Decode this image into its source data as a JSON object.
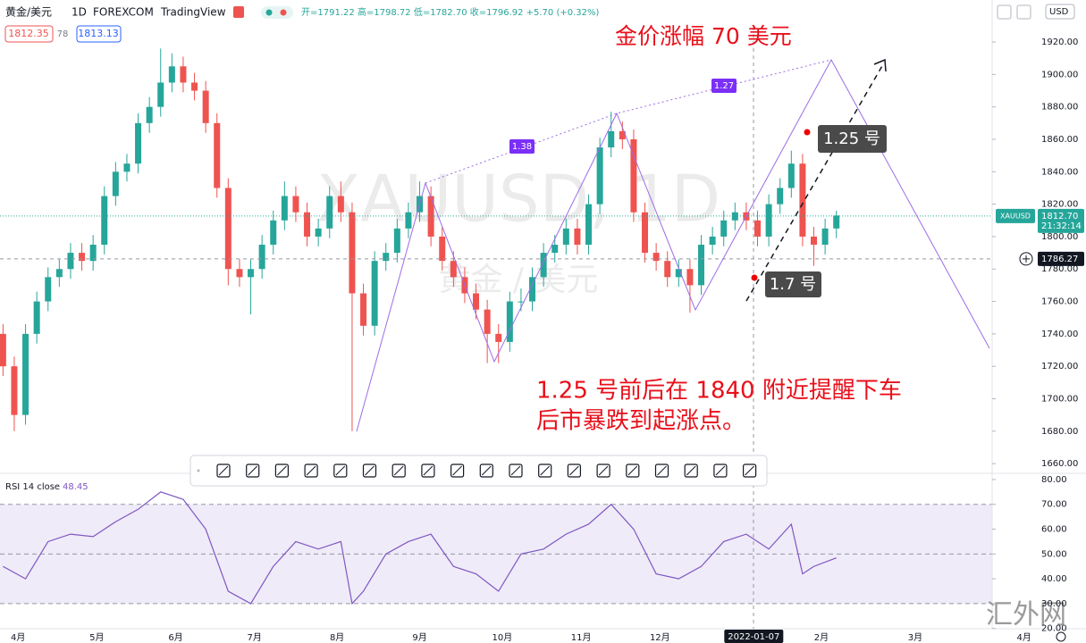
{
  "header": {
    "symbol": "黄金/美元",
    "interval": "1D",
    "exchange": "FOREXCOM",
    "source": "TradingView",
    "ohlc": "开=1791.22 高=1798.72 低=1782.70 收=1796.92 +5.70 (+0.32%)",
    "bid": "1812.35",
    "spread": "78",
    "ask": "1813.13",
    "currency": "USD",
    "site": "汇外网"
  },
  "chart_data": {
    "type": "candlestick",
    "watermark": "XAUUSD, 1D",
    "watermark_sub": "黄金 / 美元",
    "symbol_tag": "XAUUSD",
    "up_color": "#26a69a",
    "down_color": "#ef5350",
    "candles": [
      [
        -4,
        1740,
        1746,
        1714,
        1720
      ],
      [
        -1,
        1720,
        1726,
        1680,
        1690
      ],
      [
        2,
        1690,
        1746,
        1684,
        1740
      ],
      [
        5,
        1740,
        1766,
        1734,
        1760
      ],
      [
        8,
        1760,
        1781,
        1754,
        1775
      ],
      [
        11,
        1775,
        1786,
        1769,
        1780
      ],
      [
        14,
        1780,
        1796,
        1774,
        1790
      ],
      [
        17,
        1790,
        1796,
        1779,
        1785
      ],
      [
        20,
        1785,
        1801,
        1779,
        1795
      ],
      [
        23,
        1795,
        1831,
        1789,
        1825
      ],
      [
        26,
        1825,
        1846,
        1819,
        1840
      ],
      [
        29,
        1840,
        1851,
        1834,
        1845
      ],
      [
        32,
        1845,
        1876,
        1839,
        1870
      ],
      [
        35,
        1870,
        1886,
        1864,
        1880
      ],
      [
        38,
        1880,
        1916,
        1874,
        1895
      ],
      [
        41,
        1895,
        1913,
        1889,
        1905
      ],
      [
        44,
        1905,
        1911,
        1889,
        1895
      ],
      [
        47,
        1895,
        1901,
        1884,
        1890
      ],
      [
        50,
        1890,
        1896,
        1864,
        1870
      ],
      [
        53,
        1870,
        1876,
        1824,
        1830
      ],
      [
        56,
        1830,
        1836,
        1770,
        1780
      ],
      [
        59,
        1780,
        1786,
        1769,
        1775
      ],
      [
        62,
        1775,
        1786,
        1752,
        1780
      ],
      [
        65,
        1780,
        1801,
        1774,
        1795
      ],
      [
        68,
        1795,
        1816,
        1789,
        1810
      ],
      [
        71,
        1810,
        1834,
        1804,
        1825
      ],
      [
        74,
        1825,
        1831,
        1809,
        1815
      ],
      [
        77,
        1815,
        1821,
        1794,
        1800
      ],
      [
        80,
        1800,
        1811,
        1794,
        1805
      ],
      [
        83,
        1805,
        1831,
        1799,
        1825
      ],
      [
        86,
        1825,
        1834,
        1809,
        1815
      ],
      [
        89,
        1815,
        1821,
        1680,
        1765
      ],
      [
        92,
        1765,
        1771,
        1739,
        1745
      ],
      [
        95,
        1745,
        1791,
        1739,
        1785
      ],
      [
        98,
        1785,
        1796,
        1779,
        1790
      ],
      [
        101,
        1790,
        1811,
        1784,
        1805
      ],
      [
        104,
        1805,
        1821,
        1799,
        1815
      ],
      [
        107,
        1815,
        1834,
        1809,
        1825
      ],
      [
        110,
        1825,
        1831,
        1794,
        1800
      ],
      [
        113,
        1800,
        1806,
        1779,
        1785
      ],
      [
        116,
        1785,
        1791,
        1769,
        1775
      ],
      [
        119,
        1775,
        1781,
        1759,
        1765
      ],
      [
        122,
        1765,
        1771,
        1749,
        1755
      ],
      [
        125,
        1755,
        1761,
        1722,
        1740
      ],
      [
        128,
        1740,
        1746,
        1722,
        1735
      ],
      [
        131,
        1735,
        1766,
        1729,
        1760
      ],
      [
        134,
        1760,
        1768,
        1754,
        1760
      ],
      [
        137,
        1760,
        1781,
        1754,
        1775
      ],
      [
        140,
        1775,
        1796,
        1769,
        1790
      ],
      [
        143,
        1790,
        1801,
        1784,
        1795
      ],
      [
        146,
        1795,
        1811,
        1789,
        1805
      ],
      [
        149,
        1805,
        1811,
        1789,
        1795
      ],
      [
        152,
        1795,
        1826,
        1789,
        1820
      ],
      [
        155,
        1820,
        1861,
        1814,
        1855
      ],
      [
        158,
        1855,
        1877,
        1849,
        1865
      ],
      [
        161,
        1865,
        1871,
        1854,
        1860
      ],
      [
        164,
        1860,
        1866,
        1809,
        1815
      ],
      [
        167,
        1815,
        1821,
        1784,
        1790
      ],
      [
        170,
        1790,
        1796,
        1779,
        1785
      ],
      [
        173,
        1785,
        1791,
        1769,
        1775
      ],
      [
        176,
        1775,
        1786,
        1769,
        1780
      ],
      [
        179,
        1780,
        1786,
        1753,
        1770
      ],
      [
        182,
        1770,
        1801,
        1764,
        1795
      ],
      [
        185,
        1795,
        1806,
        1789,
        1800
      ],
      [
        188,
        1800,
        1816,
        1794,
        1810
      ],
      [
        191,
        1810,
        1821,
        1804,
        1815
      ],
      [
        194,
        1815,
        1821,
        1804,
        1810
      ],
      [
        197,
        1810,
        1816,
        1794,
        1800
      ],
      [
        200,
        1800,
        1826,
        1794,
        1820
      ],
      [
        203,
        1820,
        1836,
        1814,
        1830
      ],
      [
        206,
        1830,
        1853,
        1824,
        1845
      ],
      [
        209,
        1845,
        1851,
        1794,
        1800
      ],
      [
        212,
        1800,
        1806,
        1782,
        1795
      ],
      [
        215,
        1795,
        1811,
        1789,
        1805
      ],
      [
        218,
        1805,
        1816,
        1799,
        1813
      ]
    ],
    "xlim": [
      -4.8,
      259.5
    ],
    "xticks": [
      {
        "value": 0,
        "label": "4月"
      },
      {
        "value": 21,
        "label": "5月"
      },
      {
        "value": 42,
        "label": "6月"
      },
      {
        "value": 63,
        "label": "7月"
      },
      {
        "value": 85,
        "label": "8月"
      },
      {
        "value": 107,
        "label": "9月"
      },
      {
        "value": 129,
        "label": "10月"
      },
      {
        "value": 150,
        "label": "11月"
      },
      {
        "value": 171,
        "label": "12月"
      },
      {
        "value": 214,
        "label": "2月"
      },
      {
        "value": 239,
        "label": "3月"
      },
      {
        "value": 268,
        "label": "4月"
      }
    ],
    "crosshair_x": {
      "value": 196,
      "label": "2022-01-07"
    },
    "ylim": [
      1654,
      1929.4
    ],
    "yticks": [
      {
        "value": 1660,
        "label": "1660.00"
      },
      {
        "value": 1680,
        "label": "1680.00"
      },
      {
        "value": 1700,
        "label": "1700.00"
      },
      {
        "value": 1720,
        "label": "1720.00"
      },
      {
        "value": 1740,
        "label": "1740.00"
      },
      {
        "value": 1760,
        "label": "1760.00"
      },
      {
        "value": 1780,
        "label": "1780.00"
      },
      {
        "value": 1800,
        "label": "1800.00"
      },
      {
        "value": 1820,
        "label": "1820.00"
      },
      {
        "value": 1840,
        "label": "1840.00"
      },
      {
        "value": 1860,
        "label": "1860.00"
      },
      {
        "value": 1880,
        "label": "1880.00"
      },
      {
        "value": 1900,
        "label": "1900.00"
      },
      {
        "value": 1920,
        "label": "1920.00"
      }
    ],
    "last_price": {
      "value": 1812.7,
      "label": "1812.70"
    },
    "countdown": "21:32:14",
    "crosshair_y": {
      "value": 1786.27,
      "label": "1786.27"
    },
    "annotations": {
      "gain": "金价涨幅 70 美元",
      "note1": "1.25 号前后在 1840 附近提醒下车",
      "note2": "后市暴跌到起涨点。",
      "jan25": "1.25 号",
      "jan7": "1.7 号",
      "ratio1": "1.38",
      "ratio2": "1.27"
    },
    "rsi": {
      "label": "RSI 14 close",
      "value_label": "48.45",
      "color": "#7e57c2",
      "x": [
        -4,
        2,
        8,
        14,
        20,
        26,
        32,
        38,
        44,
        50,
        56,
        62,
        68,
        74,
        80,
        86,
        89,
        92,
        98,
        104,
        110,
        116,
        122,
        128,
        134,
        140,
        146,
        152,
        158,
        164,
        170,
        176,
        182,
        188,
        194,
        200,
        206,
        209,
        212,
        218
      ],
      "values": [
        45,
        40,
        55,
        58,
        57,
        63,
        68,
        75,
        72,
        60,
        35,
        30,
        45,
        55,
        52,
        55,
        30,
        35,
        50,
        55,
        58,
        45,
        42,
        35,
        50,
        52,
        58,
        62,
        70,
        60,
        42,
        40,
        45,
        55,
        58,
        52,
        62,
        42,
        45,
        48.45
      ],
      "ylim": [
        19.9,
        82.5
      ],
      "yticks": [
        {
          "value": 20,
          "label": "20.00"
        },
        {
          "value": 30,
          "label": "30.00"
        },
        {
          "value": 40,
          "label": "40.00"
        },
        {
          "value": 50,
          "label": "50.00"
        },
        {
          "value": 60,
          "label": "60.00"
        },
        {
          "value": 70,
          "label": "70.00"
        },
        {
          "value": 80,
          "label": "80.00"
        }
      ],
      "levels": [
        70,
        50,
        30
      ]
    }
  }
}
